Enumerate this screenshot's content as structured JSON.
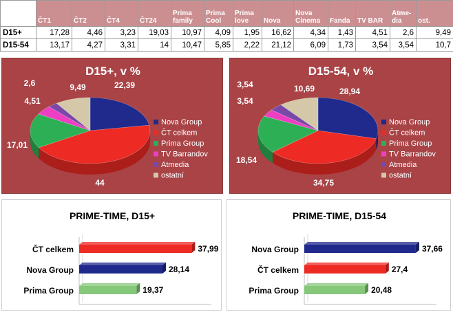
{
  "table": {
    "headers": [
      "ČT1",
      "ČT2",
      "ČT4",
      "ČT24",
      "Prima family",
      "Prima Cool",
      "Prima love",
      "Nova",
      "Nova Cinema",
      "Fanda",
      "TV BAR",
      "Atme-dia",
      "ost."
    ],
    "rows": [
      {
        "label": "D15+",
        "values": [
          "17,28",
          "4,46",
          "3,23",
          "19,03",
          "10,97",
          "4,09",
          "1,95",
          "16,62",
          "4,34",
          "1,43",
          "4,51",
          "2,6",
          "9,49"
        ]
      },
      {
        "label": "D15-54",
        "values": [
          "13,17",
          "4,27",
          "3,31",
          "14",
          "10,47",
          "5,85",
          "2,22",
          "21,12",
          "6,09",
          "1,73",
          "3,54",
          "3,54",
          "10,7"
        ]
      }
    ]
  },
  "colors": {
    "nova": "#1f2a8c",
    "ct": "#ee2a24",
    "prima": "#2db055",
    "tvbar": "#ee3fc4",
    "atmedia": "#7a48a8",
    "ostatni": "#d4c8a8",
    "panel": "#a94346",
    "bar_green": "#86c87a"
  },
  "chart_data": [
    {
      "type": "pie",
      "title": "D15+, v %",
      "slices": [
        {
          "name": "Nova Group",
          "value": 22.39,
          "label": "22,39",
          "color": "#1f2a8c"
        },
        {
          "name": "ČT celkem",
          "value": 44,
          "label": "44",
          "color": "#ee2a24"
        },
        {
          "name": "Prima Group",
          "value": 17.01,
          "label": "17,01",
          "color": "#2db055"
        },
        {
          "name": "TV Barrandov",
          "value": 4.51,
          "label": "4,51",
          "color": "#ee3fc4"
        },
        {
          "name": "Atmedia",
          "value": 2.6,
          "label": "2,6",
          "color": "#7a48a8"
        },
        {
          "name": "ostatní",
          "value": 9.49,
          "label": "9,49",
          "color": "#d4c8a8"
        }
      ],
      "legend_placement": "right"
    },
    {
      "type": "pie",
      "title": "D15-54, v %",
      "slices": [
        {
          "name": "Nova Group",
          "value": 28.94,
          "label": "28,94",
          "color": "#1f2a8c"
        },
        {
          "name": "ČT celkem",
          "value": 34.75,
          "label": "34,75",
          "color": "#ee2a24"
        },
        {
          "name": "Prima Group",
          "value": 18.54,
          "label": "18,54",
          "color": "#2db055"
        },
        {
          "name": "TV Barrandov",
          "value": 3.54,
          "label": "3,54",
          "color": "#ee3fc4"
        },
        {
          "name": "Atmedia",
          "value": 3.54,
          "label": "3,54",
          "color": "#7a48a8"
        },
        {
          "name": "ostatní",
          "value": 10.69,
          "label": "10,69",
          "color": "#d4c8a8"
        }
      ],
      "legend_placement": "right"
    },
    {
      "type": "bar",
      "orientation": "horizontal",
      "title": "PRIME-TIME, D15+",
      "categories": [
        "ČT celkem",
        "Nova Group",
        "Prima Group"
      ],
      "values": [
        37.99,
        28.14,
        19.37
      ],
      "labels": [
        "37,99",
        "28,14",
        "19,37"
      ],
      "colors": [
        "#ee2a24",
        "#1f2a8c",
        "#86c87a"
      ],
      "xlim": [
        0,
        40
      ]
    },
    {
      "type": "bar",
      "orientation": "horizontal",
      "title": "PRIME-TIME, D15-54",
      "categories": [
        "Nova Group",
        "ČT celkem",
        "Prima Group"
      ],
      "values": [
        37.66,
        27.4,
        20.48
      ],
      "labels": [
        "37,66",
        "27,4",
        "20,48"
      ],
      "colors": [
        "#1f2a8c",
        "#ee2a24",
        "#86c87a"
      ],
      "xlim": [
        0,
        40
      ]
    }
  ]
}
